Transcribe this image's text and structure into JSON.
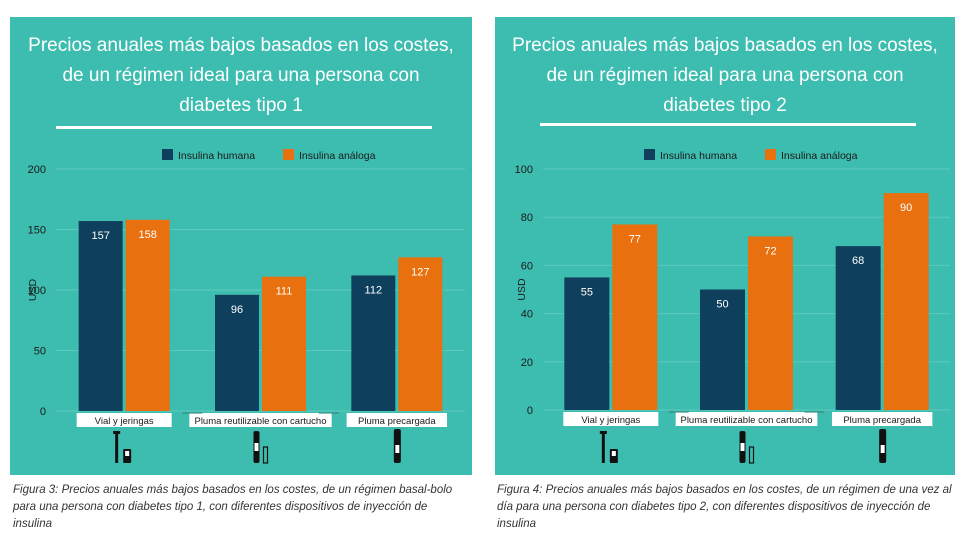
{
  "colors": {
    "panel_bg": "#3dbdb0",
    "human": "#0e3f5c",
    "analog": "#e8700e",
    "gridline": "#5ec9bd",
    "white": "#ffffff",
    "label_text": "#1a1a1a"
  },
  "chart_data": [
    {
      "type": "bar",
      "title_lines": [
        "Precios anuales más bajos basados en los costes,",
        "de un régimen ideal para una persona con",
        "diabetes tipo 1"
      ],
      "ylabel": "USD",
      "ylim": [
        0,
        200
      ],
      "yticks": [
        0,
        50,
        100,
        150,
        200
      ],
      "legend_position": "top-center",
      "grid": true,
      "categories": [
        "Vial y jeringas",
        "Pluma reutilizable con cartucho",
        "Pluma precargada"
      ],
      "category_icons": [
        "vial-syringe-icon",
        "reusable-pen-cartridge-icon",
        "prefilled-pen-icon"
      ],
      "series": [
        {
          "name": "Insulina humana",
          "color": "#0e3f5c",
          "values": [
            157,
            96,
            112
          ]
        },
        {
          "name": "Insulina análoga",
          "color": "#e8700e",
          "values": [
            158,
            111,
            127
          ]
        }
      ]
    },
    {
      "type": "bar",
      "title_lines": [
        "Precios anuales más bajos basados en los costes,",
        "de un régimen ideal para una persona con",
        "diabetes tipo 2"
      ],
      "ylabel": "USD",
      "ylim": [
        0,
        100
      ],
      "yticks": [
        0,
        20,
        40,
        60,
        80,
        100
      ],
      "legend_position": "top-center",
      "grid": true,
      "categories": [
        "Vial y jeringas",
        "Pluma reutilizable con cartucho",
        "Pluma precargada"
      ],
      "category_icons": [
        "vial-syringe-icon",
        "reusable-pen-cartridge-icon",
        "prefilled-pen-icon"
      ],
      "series": [
        {
          "name": "Insulina humana",
          "color": "#0e3f5c",
          "values": [
            55,
            50,
            68
          ]
        },
        {
          "name": "Insulina análoga",
          "color": "#e8700e",
          "values": [
            77,
            72,
            90
          ]
        }
      ]
    }
  ],
  "captions": [
    [
      "Figura 3: Precios anuales más bajos basados en los costes, de un régimen basal-bolo",
      "para una persona con diabetes tipo 1, con diferentes dispositivos de inyección de",
      "insulina"
    ],
    [
      "Figura 4: Precios anuales más bajos basados en los costes, de un régimen de una vez al",
      "día para una persona con diabetes tipo 2, con diferentes dispositivos de inyección de",
      "insulina"
    ]
  ]
}
